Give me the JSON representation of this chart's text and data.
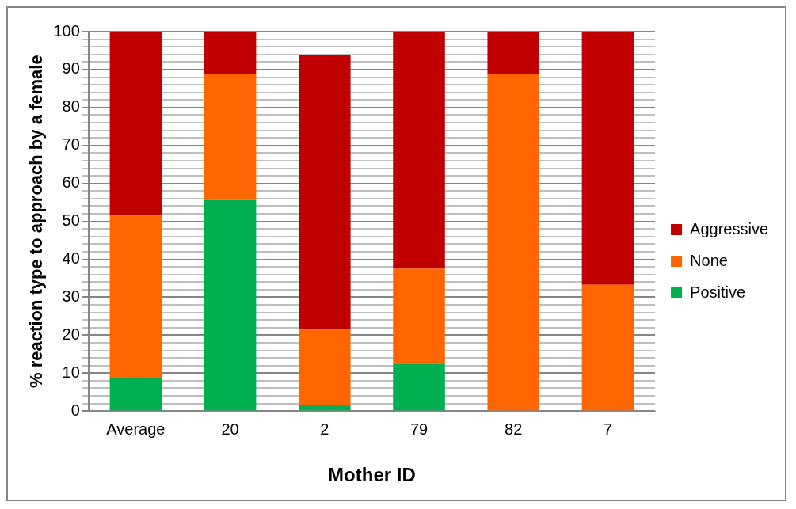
{
  "chart_data": {
    "type": "bar",
    "stacked": true,
    "xlabel": "Mother ID",
    "ylabel": "% reaction type to approach by a female",
    "categories": [
      "Average",
      "20",
      "2",
      "79",
      "82",
      "7"
    ],
    "series": [
      {
        "name": "Positive",
        "color": "#00b050",
        "values": [
          8.7,
          55.6,
          1.6,
          12.5,
          0,
          0
        ]
      },
      {
        "name": "None",
        "color": "#ff6600",
        "values": [
          42.8,
          33.3,
          19.9,
          25,
          88.9,
          33.3
        ]
      },
      {
        "name": "Aggressive",
        "color": "#c00000",
        "values": [
          48.5,
          11.1,
          72.3,
          62.5,
          11.1,
          66.7
        ]
      }
    ],
    "ylim": [
      0,
      100
    ],
    "yticks": [
      0,
      {
        "value": 2,
        "label": null
      },
      {
        "value": 4,
        "label": null
      },
      {
        "value": 6,
        "label": null
      },
      {
        "value": 8,
        "label": null
      },
      10,
      {
        "value": 12,
        "label": null
      },
      {
        "value": 14,
        "label": null
      },
      {
        "value": 16,
        "label": null
      },
      {
        "value": 18,
        "label": null
      },
      20,
      {
        "value": 22,
        "label": null
      },
      {
        "value": 24,
        "label": null
      },
      {
        "value": 26,
        "label": null
      },
      {
        "value": 28,
        "label": null
      },
      30,
      {
        "value": 32,
        "label": null
      },
      {
        "value": 34,
        "label": null
      },
      {
        "value": 36,
        "label": null
      },
      {
        "value": 38,
        "label": null
      },
      40,
      {
        "value": 42,
        "label": null
      },
      {
        "value": 44,
        "label": null
      },
      {
        "value": 46,
        "label": null
      },
      {
        "value": 48,
        "label": null
      },
      50,
      {
        "value": 52,
        "label": null
      },
      {
        "value": 54,
        "label": null
      },
      {
        "value": 56,
        "label": null
      },
      {
        "value": 58,
        "label": null
      },
      60,
      {
        "value": 62,
        "label": null
      },
      {
        "value": 64,
        "label": null
      },
      {
        "value": 66,
        "label": null
      },
      {
        "value": 68,
        "label": null
      },
      70,
      {
        "value": 72,
        "label": null
      },
      {
        "value": 74,
        "label": null
      },
      {
        "value": 76,
        "label": null
      },
      {
        "value": 78,
        "label": null
      },
      80,
      {
        "value": 82,
        "label": null
      },
      {
        "value": 84,
        "label": null
      },
      {
        "value": 86,
        "label": null
      },
      {
        "value": 88,
        "label": null
      },
      90,
      {
        "value": 92,
        "label": null
      },
      {
        "value": 94,
        "label": null
      },
      {
        "value": 96,
        "label": null
      },
      {
        "value": 98,
        "label": null
      },
      100
    ],
    "grid": "y",
    "legend": "right"
  }
}
